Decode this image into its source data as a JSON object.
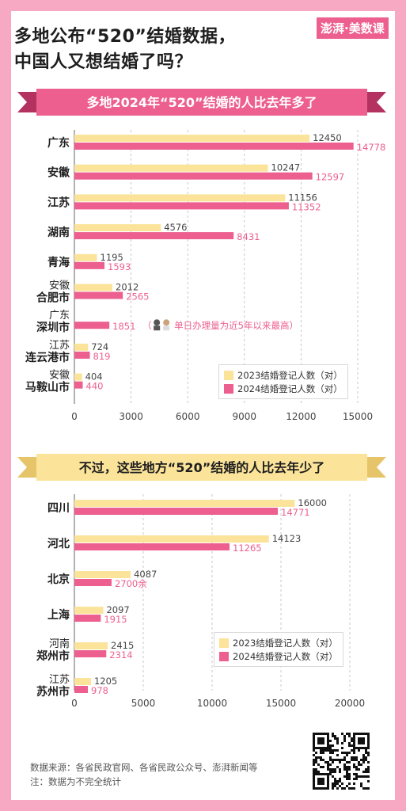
{
  "header": {
    "title_line1": "多地公布“520”结婚数据，",
    "title_line2": "中国人又想结婚了吗？",
    "logo": "澎湃·美数课"
  },
  "section1": {
    "banner": "多地2024年“520”结婚的人比去年多了"
  },
  "section2": {
    "banner": "不过，这些地方“520”结婚的人比去年少了"
  },
  "colors": {
    "y2023": "#fbe39a",
    "y2024": "#ec5f8e",
    "banner1_bg": "#ec5f8e",
    "banner2_bg": "#fbe39a",
    "frame": "#f7a8c3"
  },
  "chart_data": [
    {
      "type": "bar",
      "orientation": "horizontal",
      "categories": [
        "广东",
        "安徽",
        "江苏",
        "湖南",
        "青海",
        "安徽\n合肥市",
        "广东\n深圳市",
        "江苏\n连云港市",
        "安徽\n马鞍山市"
      ],
      "series": [
        {
          "name": "2023结婚登记人数（对）",
          "values": [
            12450,
            10247,
            11156,
            4576,
            1195,
            2012,
            null,
            724,
            404
          ]
        },
        {
          "name": "2024结婚登记人数（对）",
          "values": [
            14778,
            12597,
            11352,
            8431,
            1593,
            2565,
            1851,
            819,
            440
          ]
        }
      ],
      "annotations": [
        {
          "category": "广东\n深圳市",
          "text": "单日办理量为近5年以来最高"
        }
      ],
      "xlim": [
        0,
        15000
      ],
      "xticks": [
        0,
        3000,
        6000,
        9000,
        12000,
        15000
      ],
      "legend": "bottom-right"
    },
    {
      "type": "bar",
      "orientation": "horizontal",
      "categories": [
        "四川",
        "河北",
        "北京",
        "上海",
        "河南\n郑州市",
        "江苏\n苏州市"
      ],
      "series": [
        {
          "name": "2023结婚登记人数（对）",
          "values": [
            16000,
            14123,
            4087,
            2097,
            2415,
            1205
          ]
        },
        {
          "name": "2024结婚登记人数（对）",
          "values": [
            14771,
            11265,
            2700,
            1915,
            2314,
            978
          ],
          "labels": [
            "14771",
            "11265",
            "2700余",
            "1915",
            "2314",
            "978"
          ]
        }
      ],
      "xlim": [
        0,
        20000
      ],
      "xticks": [
        0,
        5000,
        10000,
        15000,
        20000
      ],
      "legend": "bottom-right"
    }
  ],
  "footer": {
    "source": "数据来源：各省民政官网、各省民政公众号、澎湃新闻等",
    "note": "注：数据为不完全统计"
  }
}
